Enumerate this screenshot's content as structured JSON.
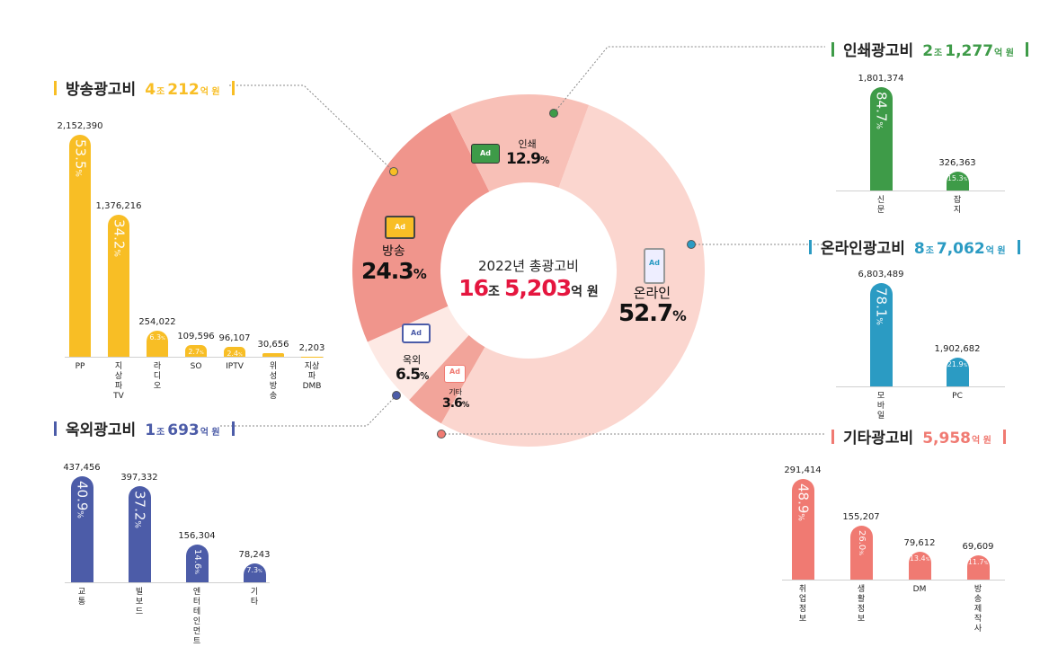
{
  "center": {
    "title": "2022년 총광고비",
    "amount1": "16",
    "unit1": "조",
    "amount2": "5,203",
    "unit2": "억 원"
  },
  "chart_data": [
    {
      "type": "pie",
      "title": "2022년 총광고비 16조 5,203억 원",
      "categories": [
        "온라인",
        "기타",
        "옥외",
        "방송",
        "인쇄"
      ],
      "values": [
        52.7,
        3.6,
        6.5,
        24.3,
        12.9
      ],
      "labels": [
        "52.7",
        "3.6",
        "6.5",
        "24.3",
        "12.9"
      ],
      "colors": [
        "#fbd6cf",
        "#f2a49a",
        "#fde9e4",
        "#f0958c",
        "#f8c0b7"
      ]
    },
    {
      "type": "bar",
      "id": "broadcast",
      "title": "방송광고비",
      "amount": [
        "4",
        "조",
        "212",
        "억 원"
      ],
      "color": "#f8be25",
      "categories": [
        "PP",
        "지상파TV",
        "라디오",
        "SO",
        "IPTV",
        "위성방송",
        "지상파\nDMB"
      ],
      "values": [
        2152390,
        1376216,
        254022,
        109596,
        96107,
        30656,
        2203
      ],
      "value_labels": [
        "2,152,390",
        "1,376,216",
        "254,022",
        "109,596",
        "96,107",
        "30,656",
        "2,203"
      ],
      "percents": [
        "53.5",
        "34.2",
        "6.3",
        "2.7",
        "2.4",
        "",
        ""
      ]
    },
    {
      "type": "bar",
      "id": "print",
      "title": "인쇄광고비",
      "amount": [
        "2",
        "조",
        "1,277",
        "억 원"
      ],
      "color": "#3e9b48",
      "categories": [
        "신문",
        "잡지"
      ],
      "values": [
        1801374,
        326363
      ],
      "value_labels": [
        "1,801,374",
        "326,363"
      ],
      "percents": [
        "84.7",
        "15.3"
      ]
    },
    {
      "type": "bar",
      "id": "online",
      "title": "온라인광고비",
      "amount": [
        "8",
        "조",
        "7,062",
        "억 원"
      ],
      "color": "#2b9bc3",
      "categories": [
        "모바일",
        "PC"
      ],
      "values": [
        6803489,
        1902682
      ],
      "value_labels": [
        "6,803,489",
        "1,902,682"
      ],
      "percents": [
        "78.1",
        "21.9"
      ]
    },
    {
      "type": "bar",
      "id": "outdoor",
      "title": "옥외광고비",
      "amount": [
        "1",
        "조",
        "693",
        "억 원"
      ],
      "color": "#4c5ca8",
      "categories": [
        "교통",
        "빌보드",
        "엔터테인먼트",
        "기타"
      ],
      "values": [
        437456,
        397332,
        156304,
        78243
      ],
      "value_labels": [
        "437,456",
        "397,332",
        "156,304",
        "78,243"
      ],
      "percents": [
        "40.9",
        "37.2",
        "14.6",
        "7.3"
      ]
    },
    {
      "type": "bar",
      "id": "other",
      "title": "기타광고비",
      "amount": [
        "",
        "",
        "5,958",
        "억 원"
      ],
      "color": "#f07a72",
      "categories": [
        "취업정보",
        "생활정보",
        "DM",
        "방송제작사"
      ],
      "values": [
        291414,
        155207,
        79612,
        69609
      ],
      "value_labels": [
        "291,414",
        "155,207",
        "79,612",
        "69,609"
      ],
      "percents": [
        "48.9",
        "26.0",
        "13.4",
        "11.7"
      ]
    }
  ],
  "percent_sign": "%",
  "icon_text": "Ad"
}
